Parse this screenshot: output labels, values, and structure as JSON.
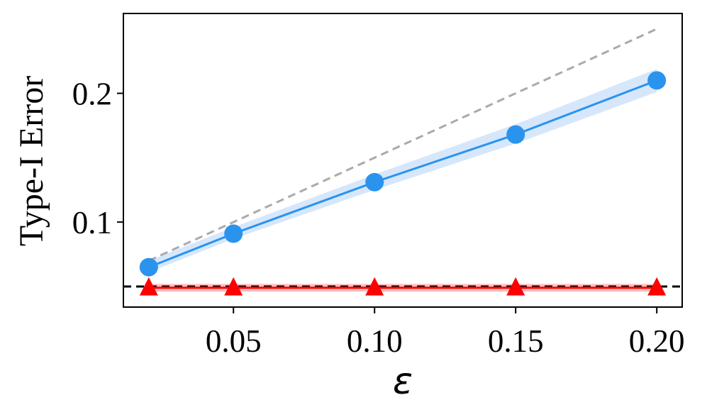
{
  "chart_data": {
    "type": "line",
    "xlabel": "ε",
    "ylabel": "Type-I Error",
    "x": [
      0.02,
      0.05,
      0.1,
      0.15,
      0.2
    ],
    "xlim": [
      0.011,
      0.209
    ],
    "ylim": [
      0.034,
      0.262
    ],
    "xticks": [
      0.05,
      0.1,
      0.15,
      0.2
    ],
    "xtick_labels": [
      "0.05",
      "0.10",
      "0.15",
      "0.20"
    ],
    "yticks": [
      0.1,
      0.2
    ],
    "ytick_labels": [
      "0.1",
      "0.2"
    ],
    "grid": false,
    "series": [
      {
        "marker": "circle",
        "color": "#2a93ee",
        "band_color": "#cfe3fb",
        "values": [
          0.065,
          0.091,
          0.131,
          0.168,
          0.21
        ],
        "band_lower": [
          0.061,
          0.087,
          0.125,
          0.161,
          0.201
        ],
        "band_upper": [
          0.07,
          0.096,
          0.137,
          0.176,
          0.219
        ]
      },
      {
        "marker": "triangle",
        "color": "#ff0000",
        "band_color": "#f8b4b4",
        "values": [
          0.049,
          0.049,
          0.049,
          0.049,
          0.049
        ],
        "band_lower": [
          0.046,
          0.046,
          0.046,
          0.046,
          0.046
        ],
        "band_upper": [
          0.052,
          0.052,
          0.052,
          0.052,
          0.052
        ]
      }
    ],
    "reference_lines": [
      {
        "style": "dashed",
        "color": "#aaaaaa",
        "x": [
          0.02,
          0.2
        ],
        "y": [
          0.07,
          0.25
        ]
      },
      {
        "style": "dashed",
        "color": "#000000",
        "y_const": 0.05
      }
    ]
  }
}
